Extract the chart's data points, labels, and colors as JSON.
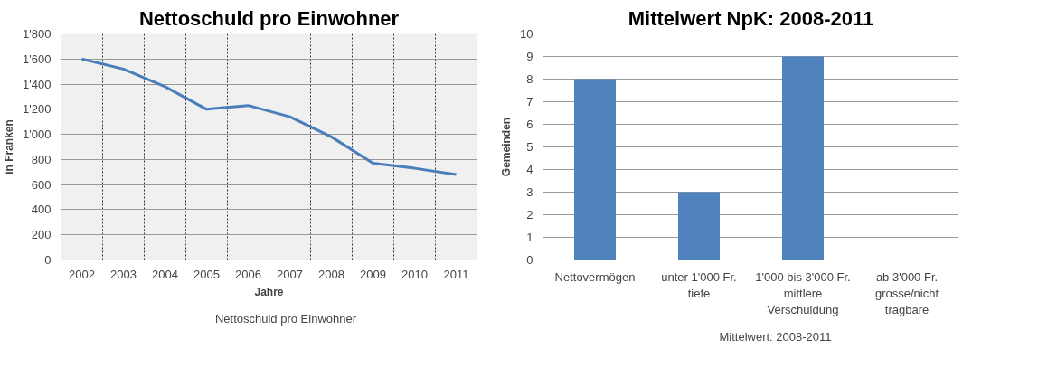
{
  "chart_data": [
    {
      "type": "line",
      "title": "Nettoschuld pro Einwohner",
      "xlabel": "Jahre",
      "ylabel": "in Franken",
      "categories": [
        "2002",
        "2003",
        "2004",
        "2005",
        "2006",
        "2007",
        "2008",
        "2009",
        "2010",
        "2011"
      ],
      "series": [
        {
          "name": "Nettoschuld pro Einwohner",
          "color": "#4a7ebb",
          "values": [
            1600,
            1520,
            1380,
            1200,
            1230,
            1140,
            980,
            770,
            730,
            680
          ]
        }
      ],
      "ylim": [
        0,
        1800
      ],
      "yticks": [
        0,
        200,
        400,
        600,
        800,
        {
          "value": 1000,
          "label": "1'000"
        },
        {
          "value": 1200,
          "label": "1'200"
        },
        {
          "value": 1400,
          "label": "1'400"
        },
        {
          "value": 1600,
          "label": "1'600"
        },
        {
          "value": 1800,
          "label": "1'800"
        }
      ],
      "grid": true,
      "legend": "bottom",
      "marker": "none",
      "line_style": "solid"
    },
    {
      "type": "bar",
      "title": "Mittelwert NpK: 2008-2011",
      "ylabel": "Gemeinden",
      "categories": [
        "Nettovermögen",
        "unter 1'000 Fr.\ntiefe",
        "1'000 bis 3'000 Fr.\nmittlere\nVerschuldung",
        "ab 3'000 Fr.\ngrosse/nicht\ntragbare"
      ],
      "series": [
        {
          "name": "Mittelwert: 2008-2011",
          "color": "#4f81bd",
          "values": [
            8,
            3,
            9,
            0
          ]
        }
      ],
      "ylim": [
        0,
        10
      ],
      "yticks": [
        0,
        1,
        2,
        3,
        4,
        5,
        6,
        7,
        8,
        9,
        10
      ],
      "grid": "y",
      "legend": "bottom"
    }
  ]
}
